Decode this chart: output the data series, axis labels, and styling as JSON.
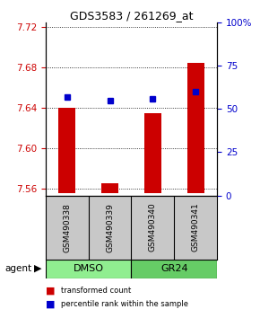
{
  "title": "GDS3583 / 261269_at",
  "samples": [
    "GSM490338",
    "GSM490339",
    "GSM490340",
    "GSM490341"
  ],
  "red_values": [
    7.64,
    7.565,
    7.635,
    7.685
  ],
  "blue_values": [
    57,
    55,
    56,
    60
  ],
  "baseline": 7.555,
  "ylim_left": [
    7.553,
    7.725
  ],
  "ylim_right": [
    0,
    100
  ],
  "yticks_left": [
    7.56,
    7.6,
    7.64,
    7.68,
    7.72
  ],
  "yticks_right": [
    0,
    25,
    50,
    75,
    100
  ],
  "groups": [
    {
      "label": "DMSO",
      "samples": [
        0,
        1
      ],
      "color": "#90EE90"
    },
    {
      "label": "GR24",
      "samples": [
        2,
        3
      ],
      "color": "#66CC66"
    }
  ],
  "group_row_label": "agent",
  "bar_color": "#CC0000",
  "dot_color": "#0000CC",
  "bar_width": 0.4,
  "background_color": "#ffffff",
  "plot_bg": "#ffffff",
  "sample_box_color": "#c8c8c8",
  "title_fontsize": 9,
  "tick_fontsize": 7.5,
  "label_fontsize": 7.5
}
